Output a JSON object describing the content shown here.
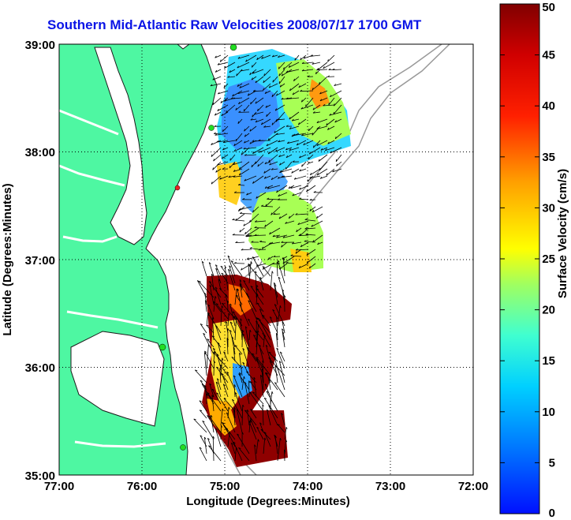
{
  "title": "Southern Mid-Atlantic Raw Velocities 2008/07/17 1700 GMT",
  "x_axis": {
    "label": "Longitude (Degrees:Minutes)",
    "ticks": [
      "77:00",
      "76:00",
      "75:00",
      "74:00",
      "73:00",
      "72:00"
    ]
  },
  "y_axis": {
    "label": "Latitude (Degrees:Minutes)",
    "ticks": [
      "39:00",
      "38:00",
      "37:00",
      "36:00",
      "35:00"
    ]
  },
  "colorbar": {
    "label": "Surface Velocity (cm/s)",
    "ticks": [
      "50",
      "45",
      "40",
      "35",
      "30",
      "25",
      "20",
      "15",
      "10",
      "5",
      "0"
    ],
    "min": 0,
    "max": 50
  },
  "colors": {
    "land": "#4ef7a2",
    "title": "#0a14e6",
    "station_green": "#22dd22",
    "station_red": "#ee2222"
  }
}
